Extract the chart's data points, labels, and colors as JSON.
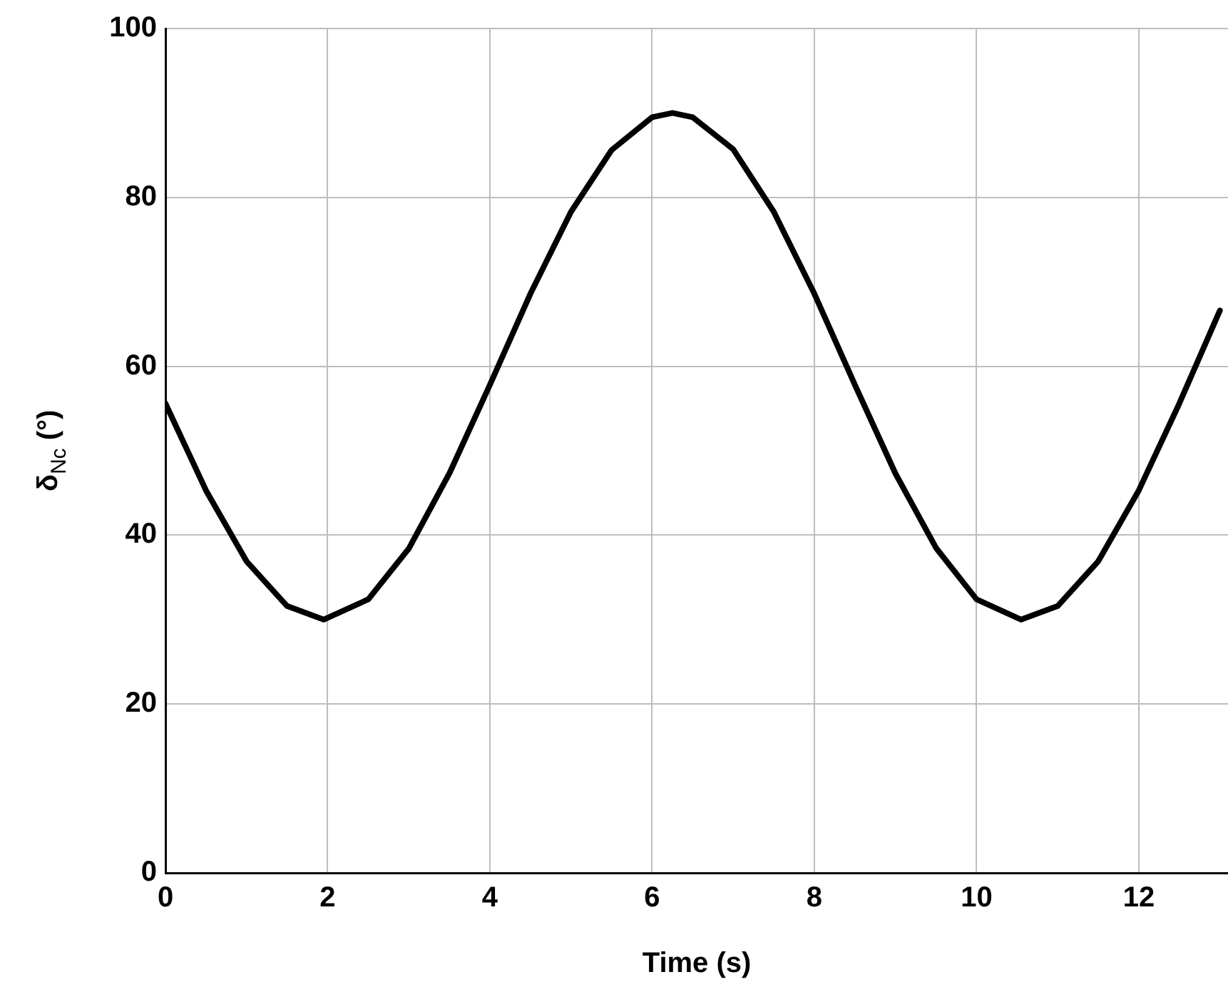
{
  "chart_data": {
    "type": "line",
    "xlabel": "Time (s)",
    "ylabel": "δ$_{Nc}$ (°)",
    "x": [
      0,
      0.5,
      1,
      1.5,
      1.95,
      2.5,
      3,
      3.5,
      4,
      4.5,
      5,
      5.5,
      6,
      6.25,
      6.5,
      7,
      7.5,
      8,
      8.5,
      9,
      9.5,
      10,
      10.55,
      11,
      11.5,
      12,
      12.5,
      13
    ],
    "series": [
      {
        "color": "#000000",
        "values": [
          55.6,
          45.3,
          36.9,
          31.6,
          30,
          32.4,
          38.4,
          47.3,
          57.8,
          68.6,
          78.3,
          85.6,
          89.5,
          90,
          89.5,
          85.7,
          78.3,
          68.6,
          57.8,
          47.3,
          38.5,
          32.4,
          30,
          31.6,
          36.9,
          45.3,
          55.6,
          66.6
        ]
      }
    ],
    "xlim": [
      0,
      13.1
    ],
    "xticks": [
      0,
      2,
      4,
      6,
      8,
      10,
      12
    ],
    "ylim": [
      0,
      100
    ],
    "yticks": [
      0,
      20,
      40,
      60,
      80,
      100
    ],
    "grid": true,
    "legend": false,
    "marker": "none",
    "line_style": "solid"
  }
}
